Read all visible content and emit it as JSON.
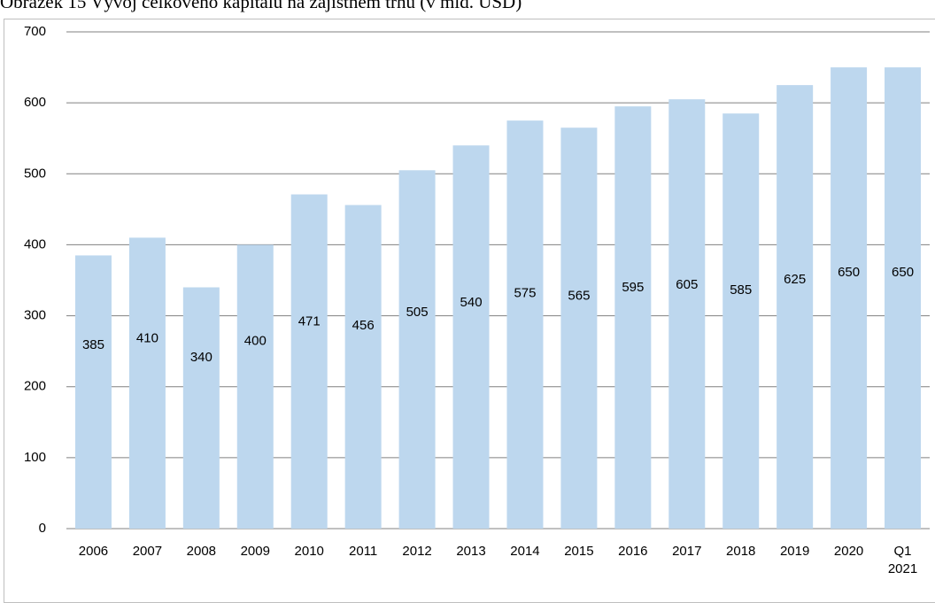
{
  "chart_data": {
    "type": "bar",
    "title": "Obrázek 15 Vývoj celkového kapitálu na zajistném trhu (v mld. USD)",
    "categories": [
      "2006",
      "2007",
      "2008",
      "2009",
      "2010",
      "2011",
      "2012",
      "2013",
      "2014",
      "2015",
      "2016",
      "2017",
      "2018",
      "2019",
      "2020",
      "Q1 2021"
    ],
    "values": [
      385,
      410,
      340,
      400,
      471,
      456,
      505,
      540,
      575,
      565,
      595,
      605,
      585,
      625,
      650,
      650
    ],
    "color": "#bdd7ee",
    "ylim": [
      0,
      700
    ],
    "yticks": [
      0,
      100,
      200,
      300,
      400,
      500,
      600,
      700
    ],
    "grid": true
  }
}
